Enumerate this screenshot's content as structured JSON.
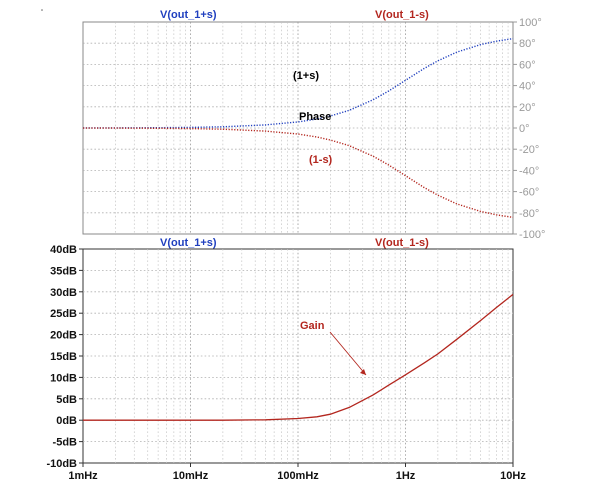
{
  "chart_data": [
    {
      "type": "line",
      "title": "",
      "x_scale": "log",
      "x_ticks": [
        0.001,
        0.01,
        0.1,
        1,
        10
      ],
      "x_tick_labels": [],
      "y_ticks": [
        100,
        80,
        60,
        40,
        20,
        0,
        -20,
        -40,
        -60,
        -80,
        -100
      ],
      "y_tick_labels": [
        "100°",
        "80°",
        "60°",
        "40°",
        "20°",
        "0°",
        "-20°",
        "-40°",
        "-60°",
        "-80°",
        "-100°"
      ],
      "ylim": [
        -100,
        100
      ],
      "grid": true,
      "legend_entries": [
        "V(out_1+s)",
        "V(out_1-s)"
      ],
      "annotations": [
        "(1+s)",
        "Phase",
        "(1-s)"
      ],
      "series": [
        {
          "name": "V(out_1+s)",
          "color": "#1f3fbf",
          "style": "dotted",
          "x": [
            0.001,
            0.002,
            0.005,
            0.01,
            0.02,
            0.05,
            0.1,
            0.15,
            0.2,
            0.3,
            0.5,
            0.7,
            1,
            1.5,
            2,
            3,
            5,
            7,
            10
          ],
          "y": [
            0.1,
            0.1,
            0.3,
            0.6,
            1.1,
            2.9,
            5.7,
            8.5,
            11.3,
            16.7,
            26.6,
            35.0,
            45.0,
            56.3,
            63.4,
            71.6,
            78.7,
            81.9,
            84.3
          ]
        },
        {
          "name": "V(out_1-s)",
          "color": "#b3261e",
          "style": "dotted",
          "x": [
            0.001,
            0.002,
            0.005,
            0.01,
            0.02,
            0.05,
            0.1,
            0.15,
            0.2,
            0.3,
            0.5,
            0.7,
            1,
            1.5,
            2,
            3,
            5,
            7,
            10
          ],
          "y": [
            -0.1,
            -0.1,
            -0.3,
            -0.6,
            -1.1,
            -2.9,
            -5.7,
            -8.5,
            -11.3,
            -16.7,
            -26.6,
            -35.0,
            -45.0,
            -56.3,
            -63.4,
            -71.6,
            -78.7,
            -81.9,
            -84.3
          ]
        }
      ]
    },
    {
      "type": "line",
      "title": "",
      "x_scale": "log",
      "x_ticks": [
        0.001,
        0.01,
        0.1,
        1,
        10
      ],
      "x_tick_labels": [
        "1mHz",
        "10mHz",
        "100mHz",
        "1Hz",
        "10Hz"
      ],
      "y_ticks": [
        40,
        35,
        30,
        25,
        20,
        15,
        10,
        5,
        0,
        -5,
        -10
      ],
      "y_tick_labels": [
        "40dB",
        "35dB",
        "30dB",
        "25dB",
        "20dB",
        "15dB",
        "10dB",
        "5dB",
        "0dB",
        "-5dB",
        "-10dB"
      ],
      "ylim": [
        -10,
        40
      ],
      "grid": true,
      "legend_entries": [
        "V(out_1+s)",
        "V(out_1-s)"
      ],
      "annotations": [
        "Gain"
      ],
      "series": [
        {
          "name": "V(out_1-s)",
          "color": "#b3261e",
          "style": "solid",
          "x": [
            0.001,
            0.002,
            0.005,
            0.01,
            0.02,
            0.05,
            0.1,
            0.15,
            0.2,
            0.3,
            0.5,
            0.7,
            1,
            1.5,
            2,
            3,
            5,
            7,
            10
          ],
          "y": [
            0.0,
            0.0,
            0.0,
            0.0,
            0.0,
            0.1,
            0.4,
            0.8,
            1.4,
            3.0,
            5.9,
            8.2,
            10.6,
            13.4,
            15.5,
            18.9,
            23.3,
            26.3,
            29.4
          ]
        }
      ]
    }
  ]
}
